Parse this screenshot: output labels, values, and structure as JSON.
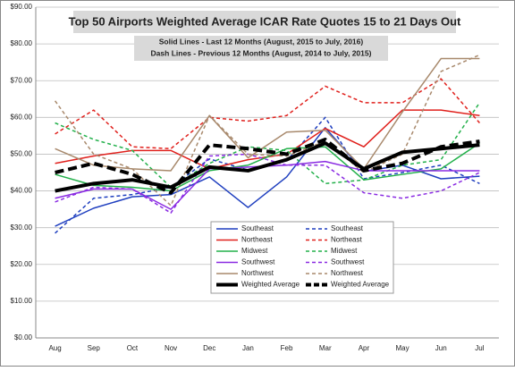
{
  "chart_data": {
    "type": "line",
    "title": "Top 50 Airports Weighted Average ICAR Rate Quotes 15 to 21 Days Out",
    "subtitle": [
      "Solid Lines - Last 12 Months  (August, 2015 to July, 2016)",
      "Dash Lines - Previous 12 Months (August, 2014 to July, 2015)"
    ],
    "categories": [
      "Aug",
      "Sep",
      "Oct",
      "Nov",
      "Dec",
      "Jan",
      "Feb",
      "Mar",
      "Apr",
      "May",
      "Jun",
      "Jul"
    ],
    "ylim": [
      0,
      90
    ],
    "yticks": [
      {
        "value": 0,
        "label": "$0.00"
      },
      {
        "value": 10,
        "label": "$10.00"
      },
      {
        "value": 20,
        "label": "$20.00"
      },
      {
        "value": 30,
        "label": "$30.00"
      },
      {
        "value": 40,
        "label": "$40.00"
      },
      {
        "value": 50,
        "label": "$50.00"
      },
      {
        "value": 60,
        "label": "$60.00"
      },
      {
        "value": 70,
        "label": "$70.00"
      },
      {
        "value": 80,
        "label": "$80.00"
      },
      {
        "value": 90,
        "label": "$90.00"
      }
    ],
    "grid": true,
    "series": [
      {
        "name": "Southeast",
        "color": "#1f3fbf",
        "dash": false,
        "width": 1.5,
        "values": [
          30.4,
          35.3,
          38.4,
          39,
          43.8,
          35.5,
          43.8,
          57.2,
          45.3,
          47,
          43.3,
          44
        ]
      },
      {
        "name": "Southeast",
        "color": "#1f3fbf",
        "dash": true,
        "width": 1.5,
        "values": [
          28.5,
          38,
          39,
          41,
          48.7,
          45.7,
          48.2,
          60,
          43.3,
          45,
          47,
          42
        ]
      },
      {
        "name": "Northeast",
        "color": "#e0201c",
        "dash": false,
        "width": 1.5,
        "values": [
          47.5,
          49.5,
          51,
          51,
          46,
          48.5,
          50,
          57,
          52,
          62,
          62,
          60.5
        ]
      },
      {
        "name": "Northeast",
        "color": "#e0201c",
        "dash": true,
        "width": 1.5,
        "values": [
          55.5,
          62,
          52,
          51.5,
          60,
          59,
          60.5,
          68.5,
          64,
          64,
          70.5,
          58.5
        ]
      },
      {
        "name": "Midwest",
        "color": "#22b04a",
        "dash": false,
        "width": 1.5,
        "values": [
          44.5,
          41.5,
          41,
          40,
          45.5,
          47,
          51.5,
          52,
          43,
          44.5,
          46,
          53
        ]
      },
      {
        "name": "Midwest",
        "color": "#22b04a",
        "dash": true,
        "width": 1.5,
        "values": [
          58.5,
          54,
          51,
          41,
          47.5,
          52,
          51,
          42,
          43,
          47,
          48.5,
          64
        ]
      },
      {
        "name": "Southwest",
        "color": "#8a2be2",
        "dash": false,
        "width": 1.5,
        "values": [
          38,
          40.5,
          40.5,
          35,
          46,
          46.5,
          47,
          48,
          45.5,
          45.5,
          45.5,
          45.5
        ]
      },
      {
        "name": "Southwest",
        "color": "#8a2be2",
        "dash": true,
        "width": 1.5,
        "values": [
          37,
          41,
          40.5,
          34,
          49.5,
          50,
          47,
          47,
          39.5,
          38,
          40,
          45
        ]
      },
      {
        "name": "Northwest",
        "color": "#a8896c",
        "dash": false,
        "width": 1.5,
        "values": [
          51.5,
          47,
          46,
          45.5,
          60.5,
          49,
          56,
          56.5,
          46,
          61.5,
          76,
          76
        ]
      },
      {
        "name": "Northwest",
        "color": "#a8896c",
        "dash": true,
        "width": 1.5,
        "values": [
          64.5,
          50,
          46,
          36,
          60.5,
          50,
          49.5,
          53.5,
          45,
          50,
          72.5,
          77
        ]
      },
      {
        "name": "Weighted Average",
        "color": "#000000",
        "dash": false,
        "width": 4,
        "values": [
          40,
          42,
          43,
          41,
          46.5,
          45.5,
          48.5,
          53,
          46,
          50.5,
          51.5,
          52.5
        ]
      },
      {
        "name": "Weighted Average",
        "color": "#000000",
        "dash": true,
        "width": 4,
        "values": [
          45,
          47.5,
          44.5,
          39.5,
          52.5,
          51.5,
          50,
          54,
          45.5,
          47.5,
          52,
          53.5
        ]
      }
    ]
  }
}
